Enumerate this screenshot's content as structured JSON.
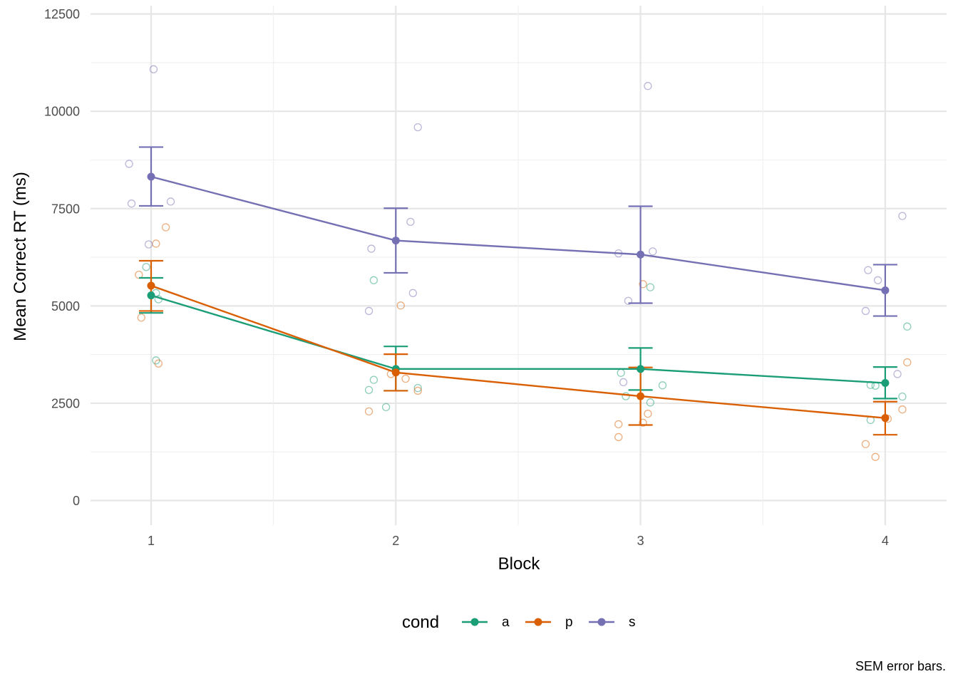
{
  "chart_data": {
    "type": "line",
    "xlabel": "Block",
    "ylabel": "Mean Correct RT (ms)",
    "caption": "SEM error bars.",
    "x": [
      1,
      2,
      3,
      4
    ],
    "x_tick_labels": [
      "1",
      "2",
      "3",
      "4"
    ],
    "ylim": [
      -600,
      12700
    ],
    "y_ticks": [
      0,
      2500,
      5000,
      7500,
      10000,
      12500
    ],
    "y_tick_labels": [
      "0",
      "2500",
      "5000",
      "7500",
      "10000",
      "12500"
    ],
    "grid": true,
    "legend": {
      "title": "cond",
      "position": "bottom"
    },
    "series": [
      {
        "name": "a",
        "color": "#1B9E77",
        "means": [
          5270,
          3380,
          3380,
          3020
        ],
        "sem_lower": [
          4820,
          2820,
          2840,
          2620
        ],
        "sem_upper": [
          5720,
          3960,
          3920,
          3430
        ],
        "points": [
          {
            "x": 0.98,
            "y": 6000
          },
          {
            "x": 1.02,
            "y": 5330
          },
          {
            "x": 1.03,
            "y": 5170
          },
          {
            "x": 1.02,
            "y": 3600
          },
          {
            "x": 1.91,
            "y": 5660
          },
          {
            "x": 1.91,
            "y": 3100
          },
          {
            "x": 1.89,
            "y": 2840
          },
          {
            "x": 1.96,
            "y": 2400
          },
          {
            "x": 2.09,
            "y": 2890
          },
          {
            "x": 2.94,
            "y": 2680
          },
          {
            "x": 2.92,
            "y": 3280
          },
          {
            "x": 3.04,
            "y": 5480
          },
          {
            "x": 3.09,
            "y": 2960
          },
          {
            "x": 3.04,
            "y": 2520
          },
          {
            "x": 3.94,
            "y": 2970
          },
          {
            "x": 3.96,
            "y": 2950
          },
          {
            "x": 3.94,
            "y": 2070
          },
          {
            "x": 4.09,
            "y": 4470
          },
          {
            "x": 4.07,
            "y": 2670
          }
        ]
      },
      {
        "name": "p",
        "color": "#D95F02",
        "means": [
          5520,
          3290,
          2680,
          2120
        ],
        "sem_lower": [
          4870,
          2820,
          1940,
          1690
        ],
        "sem_upper": [
          6160,
          3760,
          3420,
          2540
        ],
        "points": [
          {
            "x": 1.06,
            "y": 7020
          },
          {
            "x": 1.02,
            "y": 6600
          },
          {
            "x": 0.95,
            "y": 5800
          },
          {
            "x": 0.96,
            "y": 4700
          },
          {
            "x": 1.03,
            "y": 3520
          },
          {
            "x": 2.02,
            "y": 5010
          },
          {
            "x": 1.98,
            "y": 3250
          },
          {
            "x": 2.04,
            "y": 3130
          },
          {
            "x": 2.09,
            "y": 2820
          },
          {
            "x": 1.89,
            "y": 2290
          },
          {
            "x": 3.01,
            "y": 5560
          },
          {
            "x": 3.03,
            "y": 2230
          },
          {
            "x": 3.01,
            "y": 2000
          },
          {
            "x": 2.91,
            "y": 1960
          },
          {
            "x": 2.91,
            "y": 1630
          },
          {
            "x": 4.09,
            "y": 3550
          },
          {
            "x": 4.07,
            "y": 2340
          },
          {
            "x": 4.01,
            "y": 2100
          },
          {
            "x": 3.92,
            "y": 1450
          },
          {
            "x": 3.96,
            "y": 1120
          }
        ]
      },
      {
        "name": "s",
        "color": "#7570B3",
        "means": [
          8320,
          6680,
          6320,
          5400
        ],
        "sem_lower": [
          7570,
          5850,
          5070,
          4740
        ],
        "sem_upper": [
          9080,
          7510,
          7560,
          6060
        ],
        "points": [
          {
            "x": 1.01,
            "y": 11080
          },
          {
            "x": 0.91,
            "y": 8650
          },
          {
            "x": 0.92,
            "y": 7630
          },
          {
            "x": 1.08,
            "y": 7680
          },
          {
            "x": 0.99,
            "y": 6580
          },
          {
            "x": 2.09,
            "y": 9590
          },
          {
            "x": 2.06,
            "y": 7160
          },
          {
            "x": 1.9,
            "y": 6470
          },
          {
            "x": 2.07,
            "y": 5330
          },
          {
            "x": 1.89,
            "y": 4870
          },
          {
            "x": 3.03,
            "y": 10650
          },
          {
            "x": 2.91,
            "y": 6350
          },
          {
            "x": 3.05,
            "y": 6400
          },
          {
            "x": 2.95,
            "y": 5130
          },
          {
            "x": 2.93,
            "y": 3040
          },
          {
            "x": 4.07,
            "y": 7310
          },
          {
            "x": 3.93,
            "y": 5920
          },
          {
            "x": 3.97,
            "y": 5660
          },
          {
            "x": 3.92,
            "y": 4870
          },
          {
            "x": 4.05,
            "y": 3250
          }
        ]
      }
    ]
  }
}
